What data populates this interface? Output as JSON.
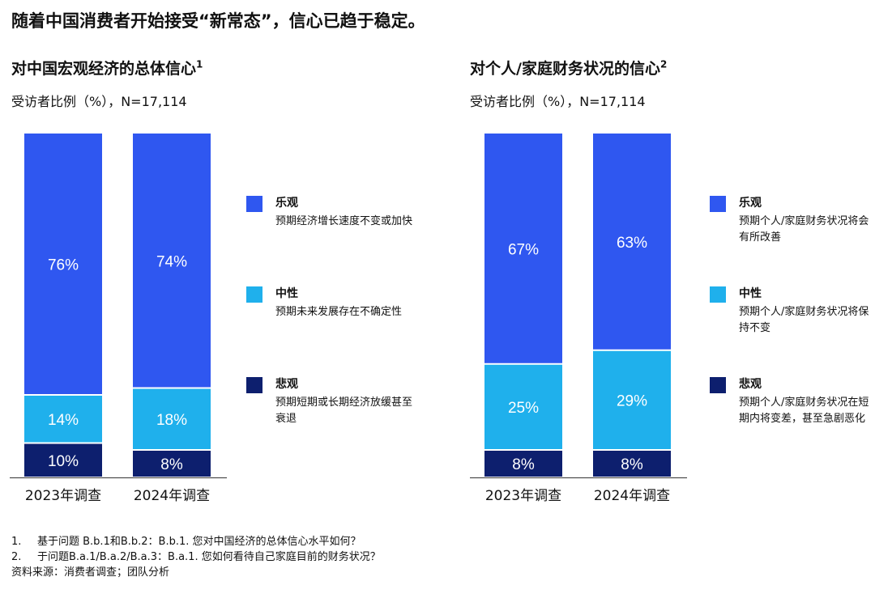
{
  "page_title": "随着中国消费者开始接受“新常态”，信心已趋于稳定。",
  "colors": {
    "optimistic": "#2f57f0",
    "neutral": "#1fb0ec",
    "pessimistic": "#0d1f6e"
  },
  "chart_data": [
    {
      "type": "bar",
      "stacked": true,
      "title": "对中国宏观经济的总体信心",
      "title_sup": "1",
      "subtitle": "受访者比例（%），N=17,114",
      "categories": [
        "2023年调查",
        "2024年调查"
      ],
      "series": [
        {
          "name": "悲观",
          "values": [
            10,
            8
          ]
        },
        {
          "name": "中性",
          "values": [
            14,
            18
          ]
        },
        {
          "name": "乐观",
          "values": [
            76,
            74
          ]
        }
      ],
      "legend": [
        {
          "name": "乐观",
          "desc": "预期经济增长速度不变或加快"
        },
        {
          "name": "中性",
          "desc": "预期未来发展存在不确定性"
        },
        {
          "name": "悲观",
          "desc": "预期短期或长期经济放缓甚至衰退"
        }
      ],
      "ylim": [
        0,
        100
      ],
      "legend_position": "right"
    },
    {
      "type": "bar",
      "stacked": true,
      "title": "对个人/家庭财务状况的信心",
      "title_sup": "2",
      "subtitle": "受访者比例（%），N=17,114",
      "categories": [
        "2023年调查",
        "2024年调查"
      ],
      "series": [
        {
          "name": "悲观",
          "values": [
            8,
            8
          ]
        },
        {
          "name": "中性",
          "values": [
            25,
            29
          ]
        },
        {
          "name": "乐观",
          "values": [
            67,
            63
          ]
        }
      ],
      "legend": [
        {
          "name": "乐观",
          "desc": "预期个人/家庭财务状况将会有所改善"
        },
        {
          "name": "中性",
          "desc": "预期个人/家庭财务状况将保持不变"
        },
        {
          "name": "悲观",
          "desc": "预期个人/家庭财务状况在短期内将变差，甚至急剧恶化"
        }
      ],
      "ylim": [
        0,
        100
      ],
      "legend_position": "right"
    }
  ],
  "footnotes": [
    {
      "num": "1.",
      "text": "基于问题 B.b.1和B.b.2：B.b.1. 您对中国经济的总体信心水平如何？"
    },
    {
      "num": "2.",
      "text": "于问题B.a.1/B.a.2/B.a.3：B.a.1. 您如何看待自己家庭目前的财务状况？"
    }
  ],
  "source": "资料来源：消费者调查；团队分析"
}
